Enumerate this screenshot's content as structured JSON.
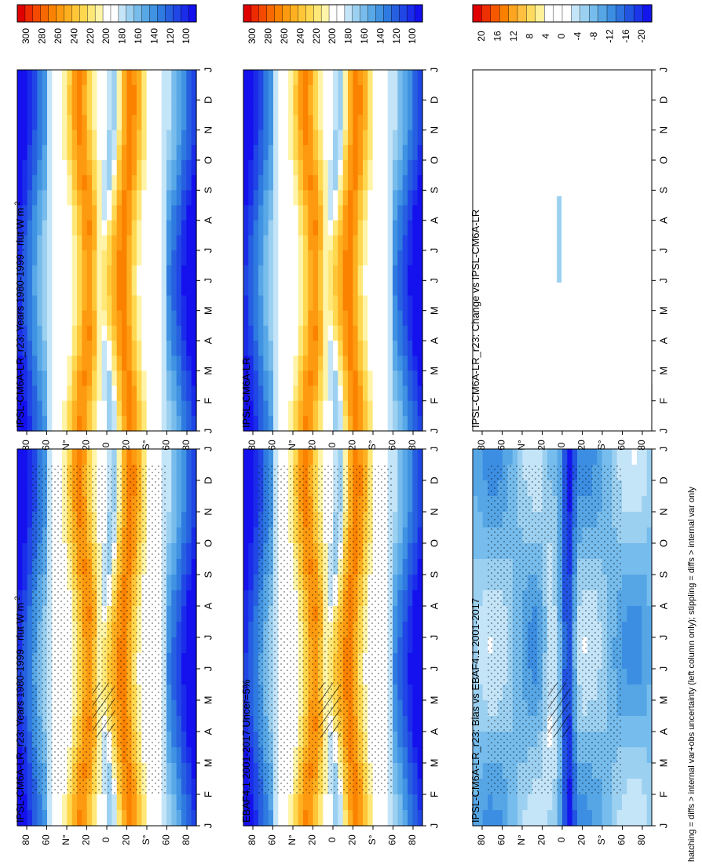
{
  "figure": {
    "footnote": "hatching = diffs > internal var+obs uncertainty (left column only); stippling = diffs > internal var only"
  },
  "chart_data": [
    {
      "type": "heatmap",
      "id": "p00",
      "title": "IPSL-CM6A-LR_r23: Years 1980-1999 : rlut W m",
      "title_sup": "-2",
      "x_ticks": [
        "J",
        "F",
        "M",
        "A",
        "M",
        "J",
        "J",
        "A",
        "S",
        "O",
        "N",
        "D",
        "J"
      ],
      "y_ticks": [
        "80",
        "60",
        "N",
        "20",
        "0",
        "20",
        "S",
        "60",
        "80"
      ],
      "y_tick_suffix": [
        "",
        "",
        "°",
        "",
        "",
        "",
        "°",
        "",
        ""
      ],
      "x_axis": "month",
      "y_axis": "latitude",
      "ylim": [
        -90,
        90
      ],
      "colorbar_ticks": [
        "300",
        "280",
        "260",
        "240",
        "220",
        "200",
        "180",
        "160",
        "140",
        "120",
        "100"
      ],
      "levels": [
        305,
        300,
        295,
        290,
        285,
        280,
        275,
        270,
        265,
        260,
        255,
        250,
        245,
        240,
        235,
        230,
        225,
        220,
        215,
        210,
        205,
        200,
        195,
        190,
        185,
        180,
        175,
        170,
        165,
        160,
        155,
        150,
        145,
        140,
        135,
        130,
        125,
        120,
        115,
        110,
        105,
        100,
        95
      ],
      "stippling": true,
      "hatching": true
    },
    {
      "type": "heatmap",
      "id": "p01",
      "title": "IPSL-CM6A-LR_r23: Years 1980-1999 : rlut W m",
      "title_sup": "-2",
      "x_ticks": [
        "J",
        "F",
        "M",
        "A",
        "M",
        "J",
        "J",
        "A",
        "S",
        "O",
        "N",
        "D",
        "J"
      ],
      "y_ticks": [
        "80",
        "60",
        "N",
        "20",
        "0",
        "20",
        "S",
        "60",
        "80"
      ],
      "y_tick_suffix": [
        "",
        "",
        "°",
        "",
        "",
        "",
        "°",
        "",
        ""
      ],
      "x_axis": "month",
      "y_axis": "latitude",
      "ylim": [
        -90,
        90
      ],
      "colorbar_ticks": [
        "300",
        "280",
        "260",
        "240",
        "220",
        "200",
        "180",
        "160",
        "140",
        "120",
        "100"
      ],
      "stippling": true,
      "hatching": false
    },
    {
      "type": "heatmap",
      "id": "p10",
      "title": "EBAF4.1 2001-2017 Uncer=5%",
      "title_sup": "",
      "x_ticks": [
        "J",
        "F",
        "M",
        "A",
        "M",
        "J",
        "J",
        "A",
        "S",
        "O",
        "N",
        "D",
        "J"
      ],
      "y_ticks": [
        "80",
        "60",
        "N",
        "20",
        "0",
        "20",
        "S",
        "60",
        "80"
      ],
      "y_tick_suffix": [
        "",
        "",
        "°",
        "",
        "",
        "",
        "°",
        "",
        ""
      ],
      "x_axis": "month",
      "y_axis": "latitude",
      "ylim": [
        -90,
        90
      ],
      "colorbar_ticks": [
        "300",
        "280",
        "260",
        "240",
        "220",
        "200",
        "180",
        "160",
        "140",
        "120",
        "100"
      ],
      "stippling": true,
      "hatching": true
    },
    {
      "type": "heatmap",
      "id": "p11",
      "title": "IPSL-CM6A-LR",
      "title_sup": "",
      "x_ticks": [
        "J",
        "F",
        "M",
        "A",
        "M",
        "J",
        "J",
        "A",
        "S",
        "O",
        "N",
        "D",
        "J"
      ],
      "y_ticks": [
        "80",
        "60",
        "N",
        "20",
        "0",
        "20",
        "S",
        "60",
        "80"
      ],
      "y_tick_suffix": [
        "",
        "",
        "°",
        "",
        "",
        "",
        "°",
        "",
        ""
      ],
      "x_axis": "month",
      "y_axis": "latitude",
      "ylim": [
        -90,
        90
      ],
      "colorbar_ticks": [
        "300",
        "280",
        "260",
        "240",
        "220",
        "200",
        "180",
        "160",
        "140",
        "120",
        "100"
      ],
      "stippling": true,
      "hatching": false
    },
    {
      "type": "heatmap",
      "id": "p20",
      "title": "IPSL-CM6A-LR_r23: Bias vs EBAF4.1 2001-2017",
      "title_sup": "",
      "x_ticks": [
        "J",
        "F",
        "M",
        "A",
        "M",
        "J",
        "J",
        "A",
        "S",
        "O",
        "N",
        "D",
        "J"
      ],
      "y_ticks": [
        "80",
        "60",
        "N",
        "20",
        "0",
        "20",
        "S",
        "60",
        "80"
      ],
      "y_tick_suffix": [
        "",
        "",
        "°",
        "",
        "",
        "",
        "°",
        "",
        ""
      ],
      "x_axis": "month",
      "y_axis": "latitude",
      "ylim": [
        -90,
        90
      ],
      "colorbar_ticks": [
        "20",
        "16",
        "12",
        "8",
        "4",
        "0",
        "-4",
        "-8",
        "-12",
        "-16",
        "-20"
      ],
      "stippling": true,
      "hatching": true
    },
    {
      "type": "heatmap",
      "id": "p21",
      "title": "IPSL-CM6A-LR_r23: Change vs IPSL-CM6A-LR",
      "title_sup": "",
      "x_ticks": [
        "J",
        "F",
        "M",
        "A",
        "M",
        "J",
        "J",
        "A",
        "S",
        "O",
        "N",
        "D",
        "J"
      ],
      "y_ticks": [
        "80",
        "60",
        "N",
        "20",
        "0",
        "20",
        "S",
        "60",
        "80"
      ],
      "y_tick_suffix": [
        "",
        "",
        "°",
        "",
        "",
        "",
        "°",
        "",
        ""
      ],
      "x_axis": "month",
      "y_axis": "latitude",
      "ylim": [
        -90,
        90
      ],
      "colorbar_ticks": [
        "20",
        "16",
        "12",
        "8",
        "4",
        "0",
        "-4",
        "-8",
        "-12",
        "-16",
        "-20"
      ],
      "stippling": true,
      "hatching": false
    }
  ],
  "colors": {
    "abs_scale": [
      "#e00000",
      "#ee2a00",
      "#f44a00",
      "#f86800",
      "#fb8200",
      "#fd9a10",
      "#feb020",
      "#ffc638",
      "#ffd850",
      "#ffe878",
      "#fff4a8",
      "#ffffff",
      "#ffffff",
      "#c4e4f8",
      "#9cd0f0",
      "#78bcec",
      "#58a8e8",
      "#4092e2",
      "#2e7ae0",
      "#2660e0",
      "#2046e6",
      "#1a2cea",
      "#1410ee"
    ],
    "diff_scale": [
      "#e00000",
      "#ee3000",
      "#f65800",
      "#fb8000",
      "#fda420",
      "#ffc040",
      "#ffdc60",
      "#fff09a",
      "#ffffff",
      "#ffffff",
      "#ffffff",
      "#c4e4f8",
      "#9cd0f0",
      "#76bcec",
      "#56a6e6",
      "#3c8ee2",
      "#2c72e0",
      "#2254e2",
      "#1a36e8",
      "#1414ec"
    ]
  }
}
